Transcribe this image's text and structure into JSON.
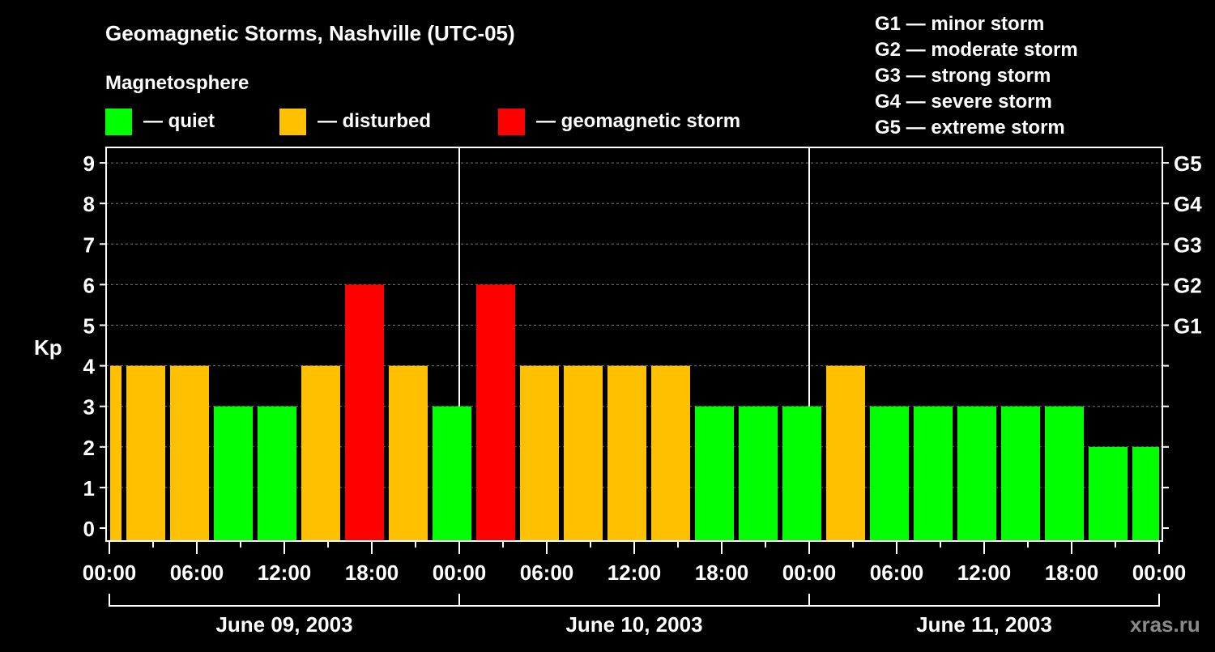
{
  "chart_data": {
    "type": "bar",
    "title": "Geomagnetic Storms, Nashville (UTC-05)",
    "legend_title": "Magnetosphere",
    "legend": [
      {
        "label": "— quiet",
        "color": "#00ff00"
      },
      {
        "label": "— disturbed",
        "color": "#ffc000"
      },
      {
        "label": "— geomagnetic storm",
        "color": "#ff0000"
      }
    ],
    "scale_legend": [
      "G1 — minor storm",
      "G2 — moderate storm",
      "G3 — strong storm",
      "G4 — severe storm",
      "G5 — extreme storm"
    ],
    "ylabel": "Kp",
    "ylim": [
      0,
      9
    ],
    "yticks": [
      "0",
      "1",
      "2",
      "3",
      "4",
      "5",
      "6",
      "7",
      "8",
      "9"
    ],
    "right_ticks": [
      {
        "kp": 5,
        "label": "G1"
      },
      {
        "kp": 6,
        "label": "G2"
      },
      {
        "kp": 7,
        "label": "G3"
      },
      {
        "kp": 8,
        "label": "G4"
      },
      {
        "kp": 9,
        "label": "G5"
      }
    ],
    "xticks": [
      "00:00",
      "06:00",
      "12:00",
      "18:00",
      "00:00",
      "06:00",
      "12:00",
      "18:00",
      "00:00",
      "06:00",
      "12:00",
      "18:00",
      "00:00"
    ],
    "days": [
      "June 09, 2003",
      "June 10, 2003",
      "June 11, 2003"
    ],
    "bar_hours_local_start": [
      -2,
      1,
      4,
      7,
      10,
      13,
      16,
      19,
      22,
      25,
      28,
      31,
      34,
      37,
      40,
      43,
      46,
      49,
      52,
      55,
      58,
      61,
      64,
      67,
      70
    ],
    "values": [
      4,
      4,
      4,
      3,
      3,
      4,
      6,
      4,
      3,
      6,
      4,
      4,
      4,
      4,
      3,
      3,
      3,
      4,
      3,
      3,
      3,
      3,
      3,
      2,
      2
    ],
    "thresholds": {
      "quiet_max": 3,
      "disturbed": 4,
      "storm_min": 5
    },
    "colors": {
      "quiet": "#00ff00",
      "disturbed": "#ffc000",
      "storm": "#ff0000"
    },
    "grid": true,
    "watermark": "xras.ru"
  }
}
